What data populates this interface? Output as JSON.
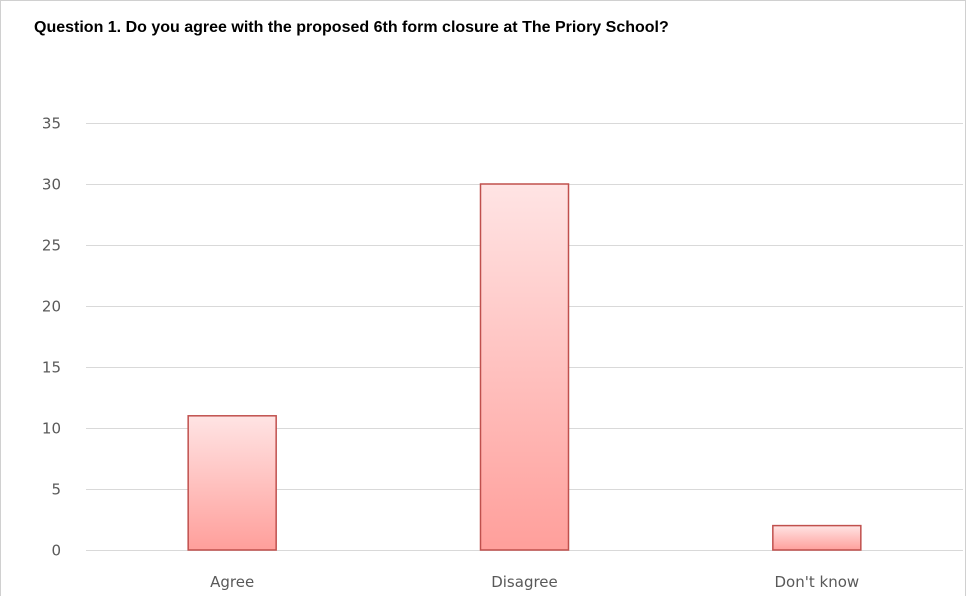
{
  "chart_data": {
    "type": "bar",
    "title": "Question 1. Do you agree with the proposed 6th form closure at The Priory School?",
    "categories": [
      "Agree",
      "Disagree",
      "Don't know"
    ],
    "values": [
      11,
      30,
      2
    ],
    "ylim": [
      0,
      35
    ],
    "yticks": [
      0,
      5,
      10,
      15,
      20,
      25,
      30,
      35
    ],
    "xlabel": "",
    "ylabel": "",
    "grid": true,
    "legend": "none"
  },
  "colors": {
    "bar_top": "#ffe4e4",
    "bar_bottom": "#ff9f9b",
    "bar_border": "#c0504d",
    "gridline": "#d9d9d9",
    "axis_text": "#595959"
  }
}
